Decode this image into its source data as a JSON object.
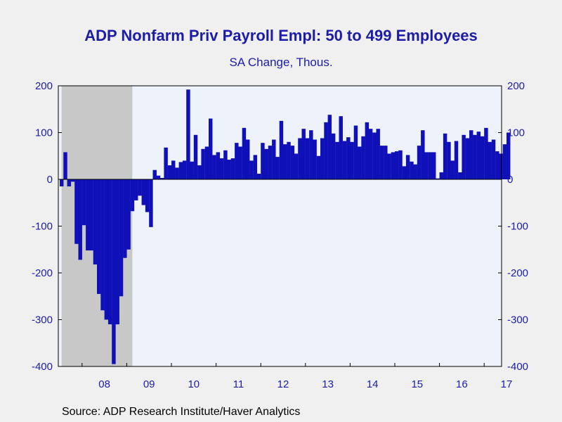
{
  "title": "ADP Nonfarm Priv Payroll Empl: 50 to 499 Employees",
  "subtitle": "SA Change, Thous.",
  "source": "Source:  ADP Research Institute/Haver Analytics",
  "colors": {
    "bar": "#1010b8",
    "plot_bg": "#eef3fb",
    "recession": "#c8c8c8",
    "text": "#1c1ca8"
  },
  "chart_data": {
    "type": "bar",
    "title": "ADP Nonfarm Priv Payroll Empl: 50 to 499 Employees",
    "subtitle": "SA Change, Thous.",
    "xlabel": "",
    "ylabel": "",
    "ylim": [
      -400,
      200
    ],
    "y_ticks": [
      200,
      100,
      0,
      -100,
      -200,
      -300,
      -400
    ],
    "x_tick_labels": [
      "08",
      "09",
      "10",
      "11",
      "12",
      "13",
      "14",
      "15",
      "16",
      "17"
    ],
    "x_start": "2007-12",
    "recession_shading": {
      "start": "2007-12",
      "end": "2009-06"
    },
    "grid": false,
    "legend": "none",
    "values": [
      -15,
      58,
      -15,
      -5,
      -138,
      -172,
      -98,
      -152,
      -152,
      -182,
      -245,
      -280,
      -300,
      -310,
      -395,
      -310,
      -250,
      -168,
      -150,
      -68,
      -45,
      -35,
      -55,
      -70,
      -102,
      20,
      8,
      3,
      68,
      30,
      40,
      25,
      37,
      40,
      192,
      38,
      95,
      30,
      65,
      70,
      130,
      52,
      58,
      45,
      62,
      42,
      45,
      78,
      70,
      110,
      85,
      40,
      52,
      12,
      78,
      65,
      72,
      85,
      48,
      125,
      75,
      80,
      72,
      55,
      88,
      108,
      88,
      105,
      85,
      50,
      88,
      122,
      138,
      98,
      80,
      135,
      82,
      90,
      80,
      115,
      70,
      92,
      122,
      108,
      100,
      108,
      72,
      72,
      55,
      58,
      60,
      62,
      28,
      52,
      38,
      32,
      72,
      105,
      58,
      58,
      58,
      2,
      15,
      98,
      80,
      40,
      82,
      15,
      95,
      88,
      105,
      95,
      102,
      92,
      110,
      80,
      85,
      60,
      55,
      75,
      100
    ]
  }
}
